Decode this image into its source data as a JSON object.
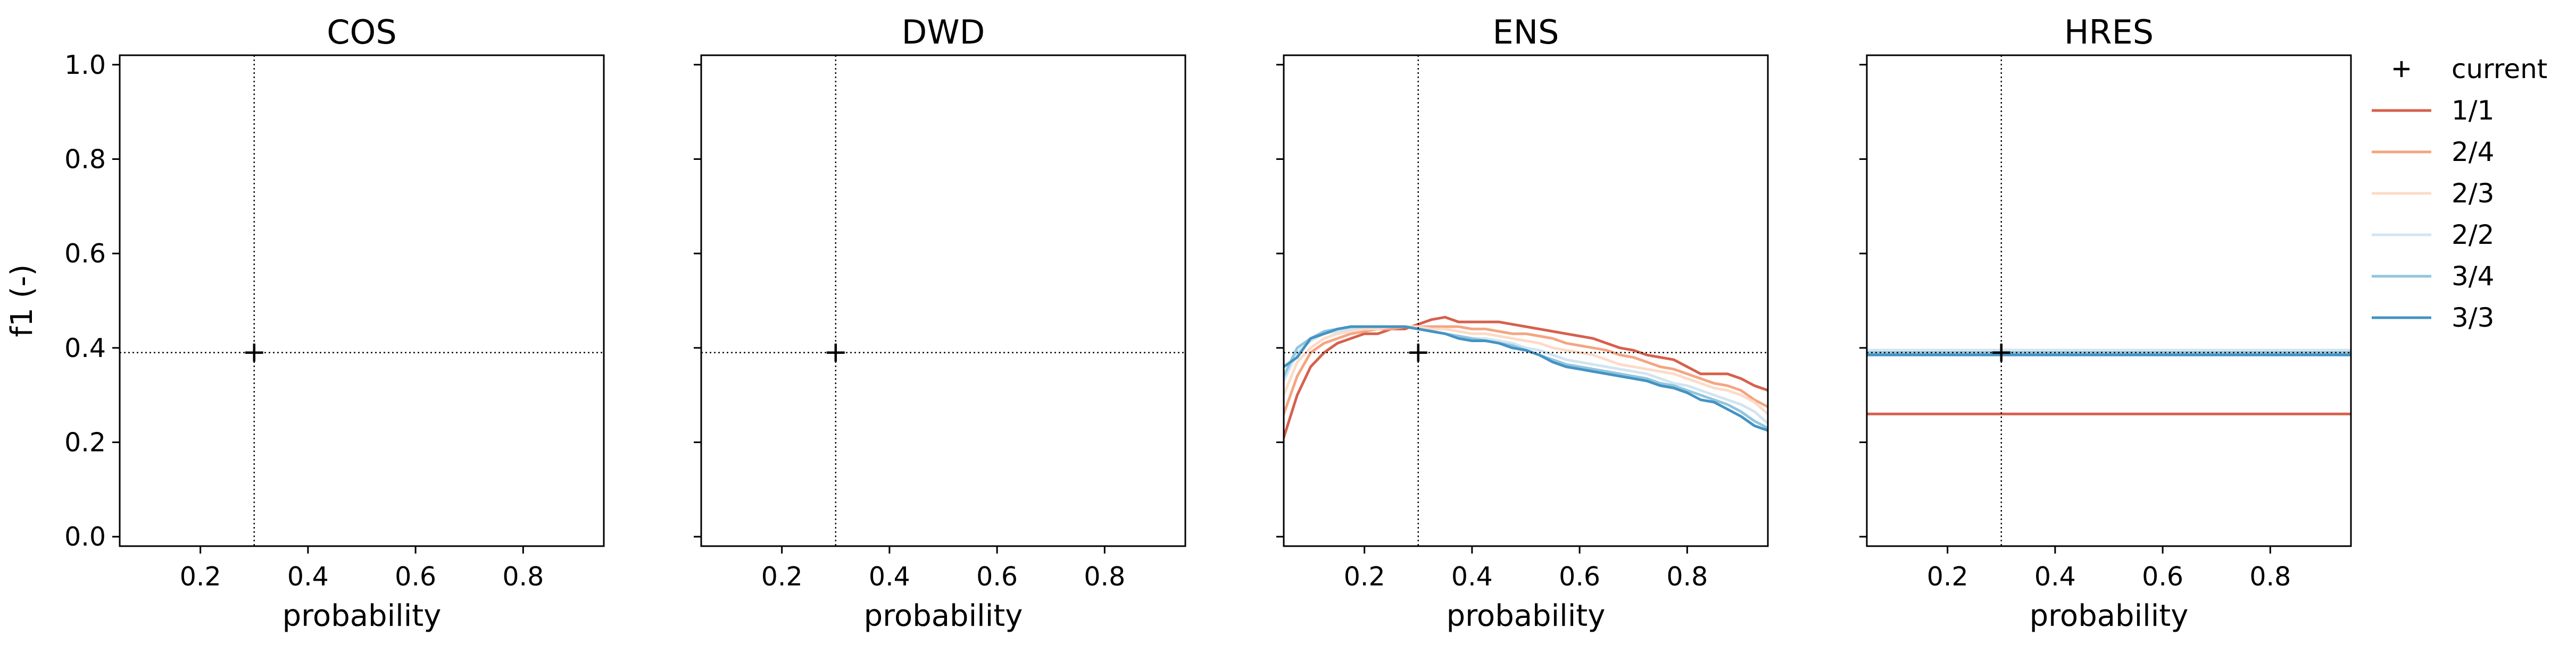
{
  "chart_data": [
    {
      "type": "line",
      "title": "COS",
      "xlabel": "probability",
      "ylabel": "f1 (-)",
      "xlim": [
        0.05,
        0.95
      ],
      "ylim": [
        -0.02,
        1.02
      ],
      "xticks": [
        0.2,
        0.4,
        0.6,
        0.8
      ],
      "yticks": [
        0.0,
        0.2,
        0.4,
        0.6,
        0.8,
        1.0
      ],
      "xtick_labels": [
        "0.2",
        "0.4",
        "0.6",
        "0.8"
      ],
      "ytick_labels": [
        "0.0",
        "0.2",
        "0.4",
        "0.6",
        "0.8",
        "1.0"
      ],
      "show_ytick_labels": true,
      "grid": false,
      "current": {
        "x": 0.3,
        "y": 0.39
      },
      "series": []
    },
    {
      "type": "line",
      "title": "DWD",
      "xlabel": "probability",
      "ylabel": "",
      "xlim": [
        0.05,
        0.95
      ],
      "ylim": [
        -0.02,
        1.02
      ],
      "xticks": [
        0.2,
        0.4,
        0.6,
        0.8
      ],
      "yticks": [
        0.0,
        0.2,
        0.4,
        0.6,
        0.8,
        1.0
      ],
      "xtick_labels": [
        "0.2",
        "0.4",
        "0.6",
        "0.8"
      ],
      "ytick_labels": [],
      "show_ytick_labels": false,
      "grid": false,
      "current": {
        "x": 0.3,
        "y": 0.39
      },
      "series": []
    },
    {
      "type": "line",
      "title": "ENS",
      "xlabel": "probability",
      "ylabel": "",
      "xlim": [
        0.05,
        0.95
      ],
      "ylim": [
        -0.02,
        1.02
      ],
      "xticks": [
        0.2,
        0.4,
        0.6,
        0.8
      ],
      "yticks": [
        0.0,
        0.2,
        0.4,
        0.6,
        0.8,
        1.0
      ],
      "xtick_labels": [
        "0.2",
        "0.4",
        "0.6",
        "0.8"
      ],
      "ytick_labels": [],
      "show_ytick_labels": false,
      "grid": false,
      "current": {
        "x": 0.3,
        "y": 0.39
      },
      "x": [
        0.05,
        0.075,
        0.1,
        0.125,
        0.15,
        0.175,
        0.2,
        0.225,
        0.25,
        0.275,
        0.3,
        0.325,
        0.35,
        0.375,
        0.4,
        0.425,
        0.45,
        0.475,
        0.5,
        0.525,
        0.55,
        0.575,
        0.6,
        0.625,
        0.65,
        0.675,
        0.7,
        0.725,
        0.75,
        0.775,
        0.8,
        0.825,
        0.85,
        0.875,
        0.9,
        0.925,
        0.95
      ],
      "series": [
        {
          "name": "1/1",
          "color": "#d6604d",
          "values": [
            0.21,
            0.3,
            0.36,
            0.39,
            0.41,
            0.42,
            0.43,
            0.43,
            0.44,
            0.44,
            0.45,
            0.46,
            0.465,
            0.455,
            0.455,
            0.455,
            0.455,
            0.45,
            0.445,
            0.44,
            0.435,
            0.43,
            0.425,
            0.42,
            0.41,
            0.4,
            0.395,
            0.385,
            0.38,
            0.375,
            0.36,
            0.345,
            0.345,
            0.345,
            0.335,
            0.32,
            0.31
          ]
        },
        {
          "name": "2/4",
          "color": "#f4a582",
          "values": [
            0.26,
            0.34,
            0.39,
            0.41,
            0.42,
            0.43,
            0.435,
            0.44,
            0.44,
            0.445,
            0.445,
            0.445,
            0.445,
            0.445,
            0.44,
            0.44,
            0.435,
            0.43,
            0.43,
            0.425,
            0.42,
            0.41,
            0.405,
            0.4,
            0.395,
            0.385,
            0.38,
            0.37,
            0.36,
            0.355,
            0.345,
            0.335,
            0.325,
            0.32,
            0.31,
            0.29,
            0.275
          ]
        },
        {
          "name": "2/3",
          "color": "#fddbc7",
          "values": [
            0.3,
            0.37,
            0.4,
            0.42,
            0.43,
            0.435,
            0.44,
            0.44,
            0.445,
            0.445,
            0.445,
            0.44,
            0.44,
            0.435,
            0.43,
            0.43,
            0.425,
            0.42,
            0.415,
            0.41,
            0.4,
            0.395,
            0.39,
            0.385,
            0.375,
            0.365,
            0.36,
            0.355,
            0.35,
            0.345,
            0.335,
            0.325,
            0.315,
            0.31,
            0.3,
            0.285,
            0.26
          ]
        },
        {
          "name": "2/2",
          "color": "#d1e5f0",
          "values": [
            0.33,
            0.39,
            0.415,
            0.43,
            0.435,
            0.44,
            0.445,
            0.445,
            0.445,
            0.445,
            0.44,
            0.435,
            0.43,
            0.425,
            0.42,
            0.42,
            0.415,
            0.41,
            0.4,
            0.395,
            0.385,
            0.375,
            0.37,
            0.365,
            0.36,
            0.355,
            0.35,
            0.345,
            0.335,
            0.325,
            0.32,
            0.31,
            0.3,
            0.29,
            0.28,
            0.265,
            0.24
          ]
        },
        {
          "name": "3/4",
          "color": "#92c5de",
          "values": [
            0.34,
            0.4,
            0.42,
            0.435,
            0.44,
            0.445,
            0.445,
            0.445,
            0.445,
            0.445,
            0.44,
            0.435,
            0.43,
            0.425,
            0.42,
            0.415,
            0.41,
            0.405,
            0.395,
            0.385,
            0.375,
            0.365,
            0.36,
            0.355,
            0.35,
            0.345,
            0.34,
            0.335,
            0.325,
            0.32,
            0.31,
            0.3,
            0.29,
            0.28,
            0.265,
            0.245,
            0.23
          ]
        },
        {
          "name": "3/3",
          "color": "#4393c3",
          "values": [
            0.36,
            0.38,
            0.42,
            0.43,
            0.44,
            0.445,
            0.445,
            0.445,
            0.445,
            0.445,
            0.44,
            0.435,
            0.43,
            0.42,
            0.415,
            0.415,
            0.41,
            0.4,
            0.395,
            0.385,
            0.37,
            0.36,
            0.355,
            0.35,
            0.345,
            0.34,
            0.335,
            0.33,
            0.32,
            0.315,
            0.305,
            0.29,
            0.285,
            0.27,
            0.255,
            0.235,
            0.225
          ]
        }
      ]
    },
    {
      "type": "line",
      "title": "HRES",
      "xlabel": "probability",
      "ylabel": "",
      "xlim": [
        0.05,
        0.95
      ],
      "ylim": [
        -0.02,
        1.02
      ],
      "xticks": [
        0.2,
        0.4,
        0.6,
        0.8
      ],
      "yticks": [
        0.0,
        0.2,
        0.4,
        0.6,
        0.8,
        1.0
      ],
      "xtick_labels": [
        "0.2",
        "0.4",
        "0.6",
        "0.8"
      ],
      "ytick_labels": [],
      "show_ytick_labels": false,
      "grid": false,
      "current": {
        "x": 0.3,
        "y": 0.39
      },
      "x": [
        0.05,
        0.95
      ],
      "series": [
        {
          "name": "1/1",
          "color": "#d6604d",
          "values": [
            0.26,
            0.26
          ]
        },
        {
          "name": "2/4",
          "color": "#f4a582",
          "values": [
            0.395,
            0.395
          ]
        },
        {
          "name": "2/3",
          "color": "#fddbc7",
          "values": [
            0.395,
            0.395
          ]
        },
        {
          "name": "2/2",
          "color": "#d1e5f0",
          "values": [
            0.395,
            0.395
          ]
        },
        {
          "name": "3/4",
          "color": "#92c5de",
          "values": [
            0.39,
            0.39
          ]
        },
        {
          "name": "3/3",
          "color": "#4393c3",
          "values": [
            0.385,
            0.385
          ]
        }
      ]
    }
  ],
  "legend": {
    "placement": "right",
    "entries": [
      {
        "label": "current",
        "marker": "plus",
        "color": "#000000"
      },
      {
        "label": "1/1",
        "marker": "line",
        "color": "#d6604d"
      },
      {
        "label": "2/4",
        "marker": "line",
        "color": "#f4a582"
      },
      {
        "label": "2/3",
        "marker": "line",
        "color": "#fddbc7"
      },
      {
        "label": "2/2",
        "marker": "line",
        "color": "#d1e5f0"
      },
      {
        "label": "3/4",
        "marker": "line",
        "color": "#92c5de"
      },
      {
        "label": "3/3",
        "marker": "line",
        "color": "#4393c3"
      }
    ]
  }
}
